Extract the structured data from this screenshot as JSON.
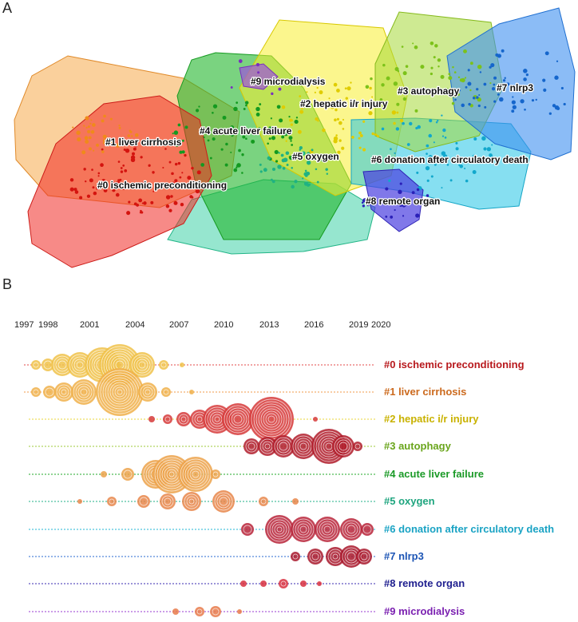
{
  "panel_a": {
    "letter": "A",
    "clusters": [
      {
        "id": 0,
        "label": "#0 ischemic preconditioning",
        "color": "#e8201c"
      },
      {
        "id": 1,
        "label": "#1 liver cirrhosis",
        "color": "#f39c3c"
      },
      {
        "id": 2,
        "label": "#2 hepatic i/r injury",
        "color": "#f2e300"
      },
      {
        "id": 3,
        "label": "#3 autophagy",
        "color": "#9ccc2a"
      },
      {
        "id": 4,
        "label": "#4 acute liver failure",
        "color": "#1faa2a"
      },
      {
        "id": 5,
        "label": "#5 oxygen",
        "color": "#2fc59a"
      },
      {
        "id": 6,
        "label": "#6 donation after circulatory death",
        "color": "#19b7d9"
      },
      {
        "id": 7,
        "label": "#7 nlrp3",
        "color": "#1a73d9"
      },
      {
        "id": 8,
        "label": "#8 remote organ",
        "color": "#3b2fc9"
      },
      {
        "id": 9,
        "label": "#9 microdialysis",
        "color": "#8c3bd0"
      }
    ]
  },
  "panel_b": {
    "letter": "B",
    "years": [
      "1997",
      "1998",
      "2001",
      "2004",
      "2007",
      "2010",
      "2013",
      "2016",
      "2019",
      "2020"
    ],
    "timelines": [
      {
        "label": "#0 ischemic preconditioning",
        "color": "#b8191d"
      },
      {
        "label": "#1 liver cirrhosis",
        "color": "#cc6a1e"
      },
      {
        "label": "#2 hepatic i/r injury",
        "color": "#c9b200"
      },
      {
        "label": "#3 autophagy",
        "color": "#6aa51c"
      },
      {
        "label": "#4 acute liver failure",
        "color": "#1b9a27"
      },
      {
        "label": "#5 oxygen",
        "color": "#1fa57f"
      },
      {
        "label": "#6 donation after circulatory death",
        "color": "#1aa3c4"
      },
      {
        "label": "#7 nlrp3",
        "color": "#1d55b5"
      },
      {
        "label": "#8 remote organ",
        "color": "#1f1f8f"
      },
      {
        "label": "#9 microdialysis",
        "color": "#7a1fb0"
      }
    ]
  }
}
